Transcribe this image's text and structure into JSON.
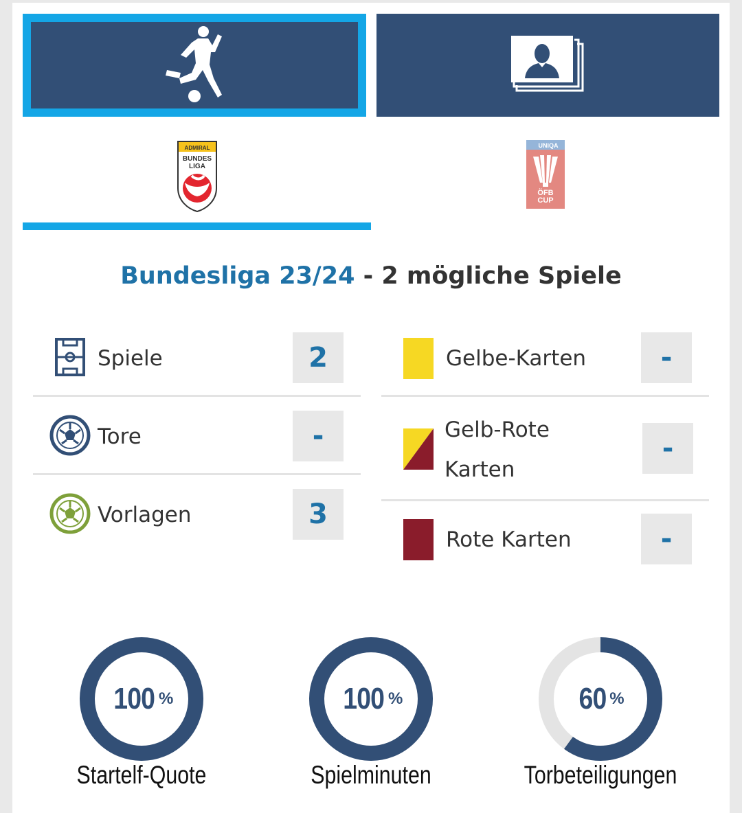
{
  "tabs": [
    {
      "id": "player",
      "icon": "football-player-icon",
      "active": true
    },
    {
      "id": "profile",
      "icon": "profile-photos-icon",
      "active": false
    }
  ],
  "competitions": [
    {
      "icon": "admiral-bundesliga-logo",
      "logo_lines": [
        "ADMIRAL",
        "BUNDES",
        "LIGA"
      ],
      "active": true
    },
    {
      "icon": "uniqa-ofb-cup-logo",
      "logo_lines": [
        "UNIQA",
        "ÖFB",
        "CUP"
      ],
      "active": false
    }
  ],
  "headline": {
    "league": "Bundesliga 23/24",
    "rest": " - 2 mögliche Spiele"
  },
  "stats_left": [
    {
      "label": "Spiele",
      "value": "2",
      "icon": "pitch-icon"
    },
    {
      "label": "Tore",
      "value": "-",
      "icon": "ball-icon"
    },
    {
      "label": "Vorlagen",
      "value": "3",
      "icon": "assist-ball-icon"
    }
  ],
  "stats_right": [
    {
      "label": "Gelbe-Karten",
      "value": "-",
      "icon": "yellow-card-icon"
    },
    {
      "label_line1": "Gelb-Rote",
      "label_line2": "Karten",
      "value": "-",
      "icon": "yellow-red-card-icon"
    },
    {
      "label": "Rote Karten",
      "value": "-",
      "icon": "red-card-icon"
    }
  ],
  "rings": [
    {
      "value": 100,
      "num": "100",
      "unit": "%",
      "label": "Startelf-Quote"
    },
    {
      "value": 100,
      "num": "100",
      "unit": "%",
      "label": "Spielminuten"
    },
    {
      "value": 60,
      "num": "60",
      "unit": "%",
      "label": "Torbeteiligungen"
    }
  ],
  "colors": {
    "navy": "#324f76",
    "accent": "#14a6e6",
    "link": "#1f72a7",
    "yellow": "#f6d823",
    "red": "#8a1c2b",
    "track": "#e4e4e4"
  }
}
